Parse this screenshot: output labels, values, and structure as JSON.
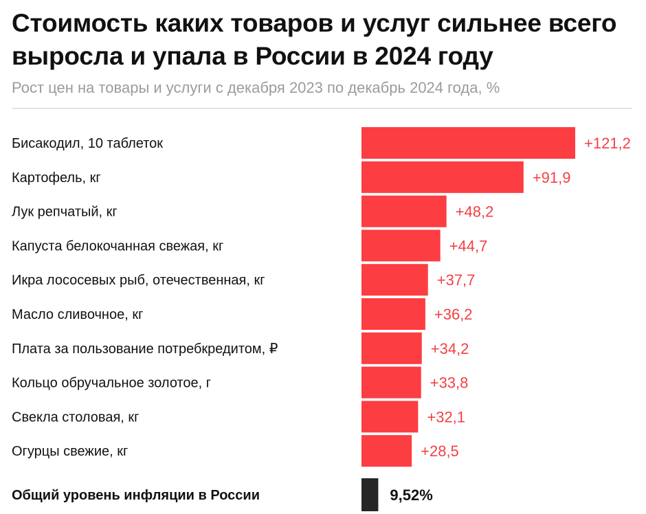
{
  "title": "Стоимость каких товаров и услуг сильнее всего выросла и упала в России в 2024 году",
  "subtitle": "Рост цен на товары и услуги с декабря 2023 по декабрь 2024 года, %",
  "colors": {
    "bar": "#fc3d42",
    "value_text": "#f24045",
    "total_bar": "#262626"
  },
  "chart_data": {
    "type": "bar",
    "orientation": "horizontal",
    "categories": [
      "Бисакодил, 10 таблеток",
      "Картофель, кг",
      "Лук репчатый, кг",
      "Капуста белокочанная свежая, кг",
      "Икра лососевых рыб, отечественная, кг",
      "Масло сливочное, кг",
      "Плата за пользование потребкредитом, ₽",
      "Кольцо обручальное золотое, г",
      "Свекла столовая, кг",
      "Огурцы свежие, кг"
    ],
    "values": [
      121.2,
      91.9,
      48.2,
      44.7,
      37.7,
      36.2,
      34.2,
      33.8,
      32.1,
      28.5
    ],
    "value_labels": [
      "+121,2",
      "+91,9",
      "+48,2",
      "+44,7",
      "+37,7",
      "+36,2",
      "+34,2",
      "+33,8",
      "+32,1",
      "+28,5"
    ],
    "total": {
      "label": "Общий уровень инфляции в России",
      "value": 9.52,
      "value_label": "9,52%"
    },
    "xlim": [
      0,
      121.2
    ],
    "grid": false,
    "legend": "none"
  }
}
